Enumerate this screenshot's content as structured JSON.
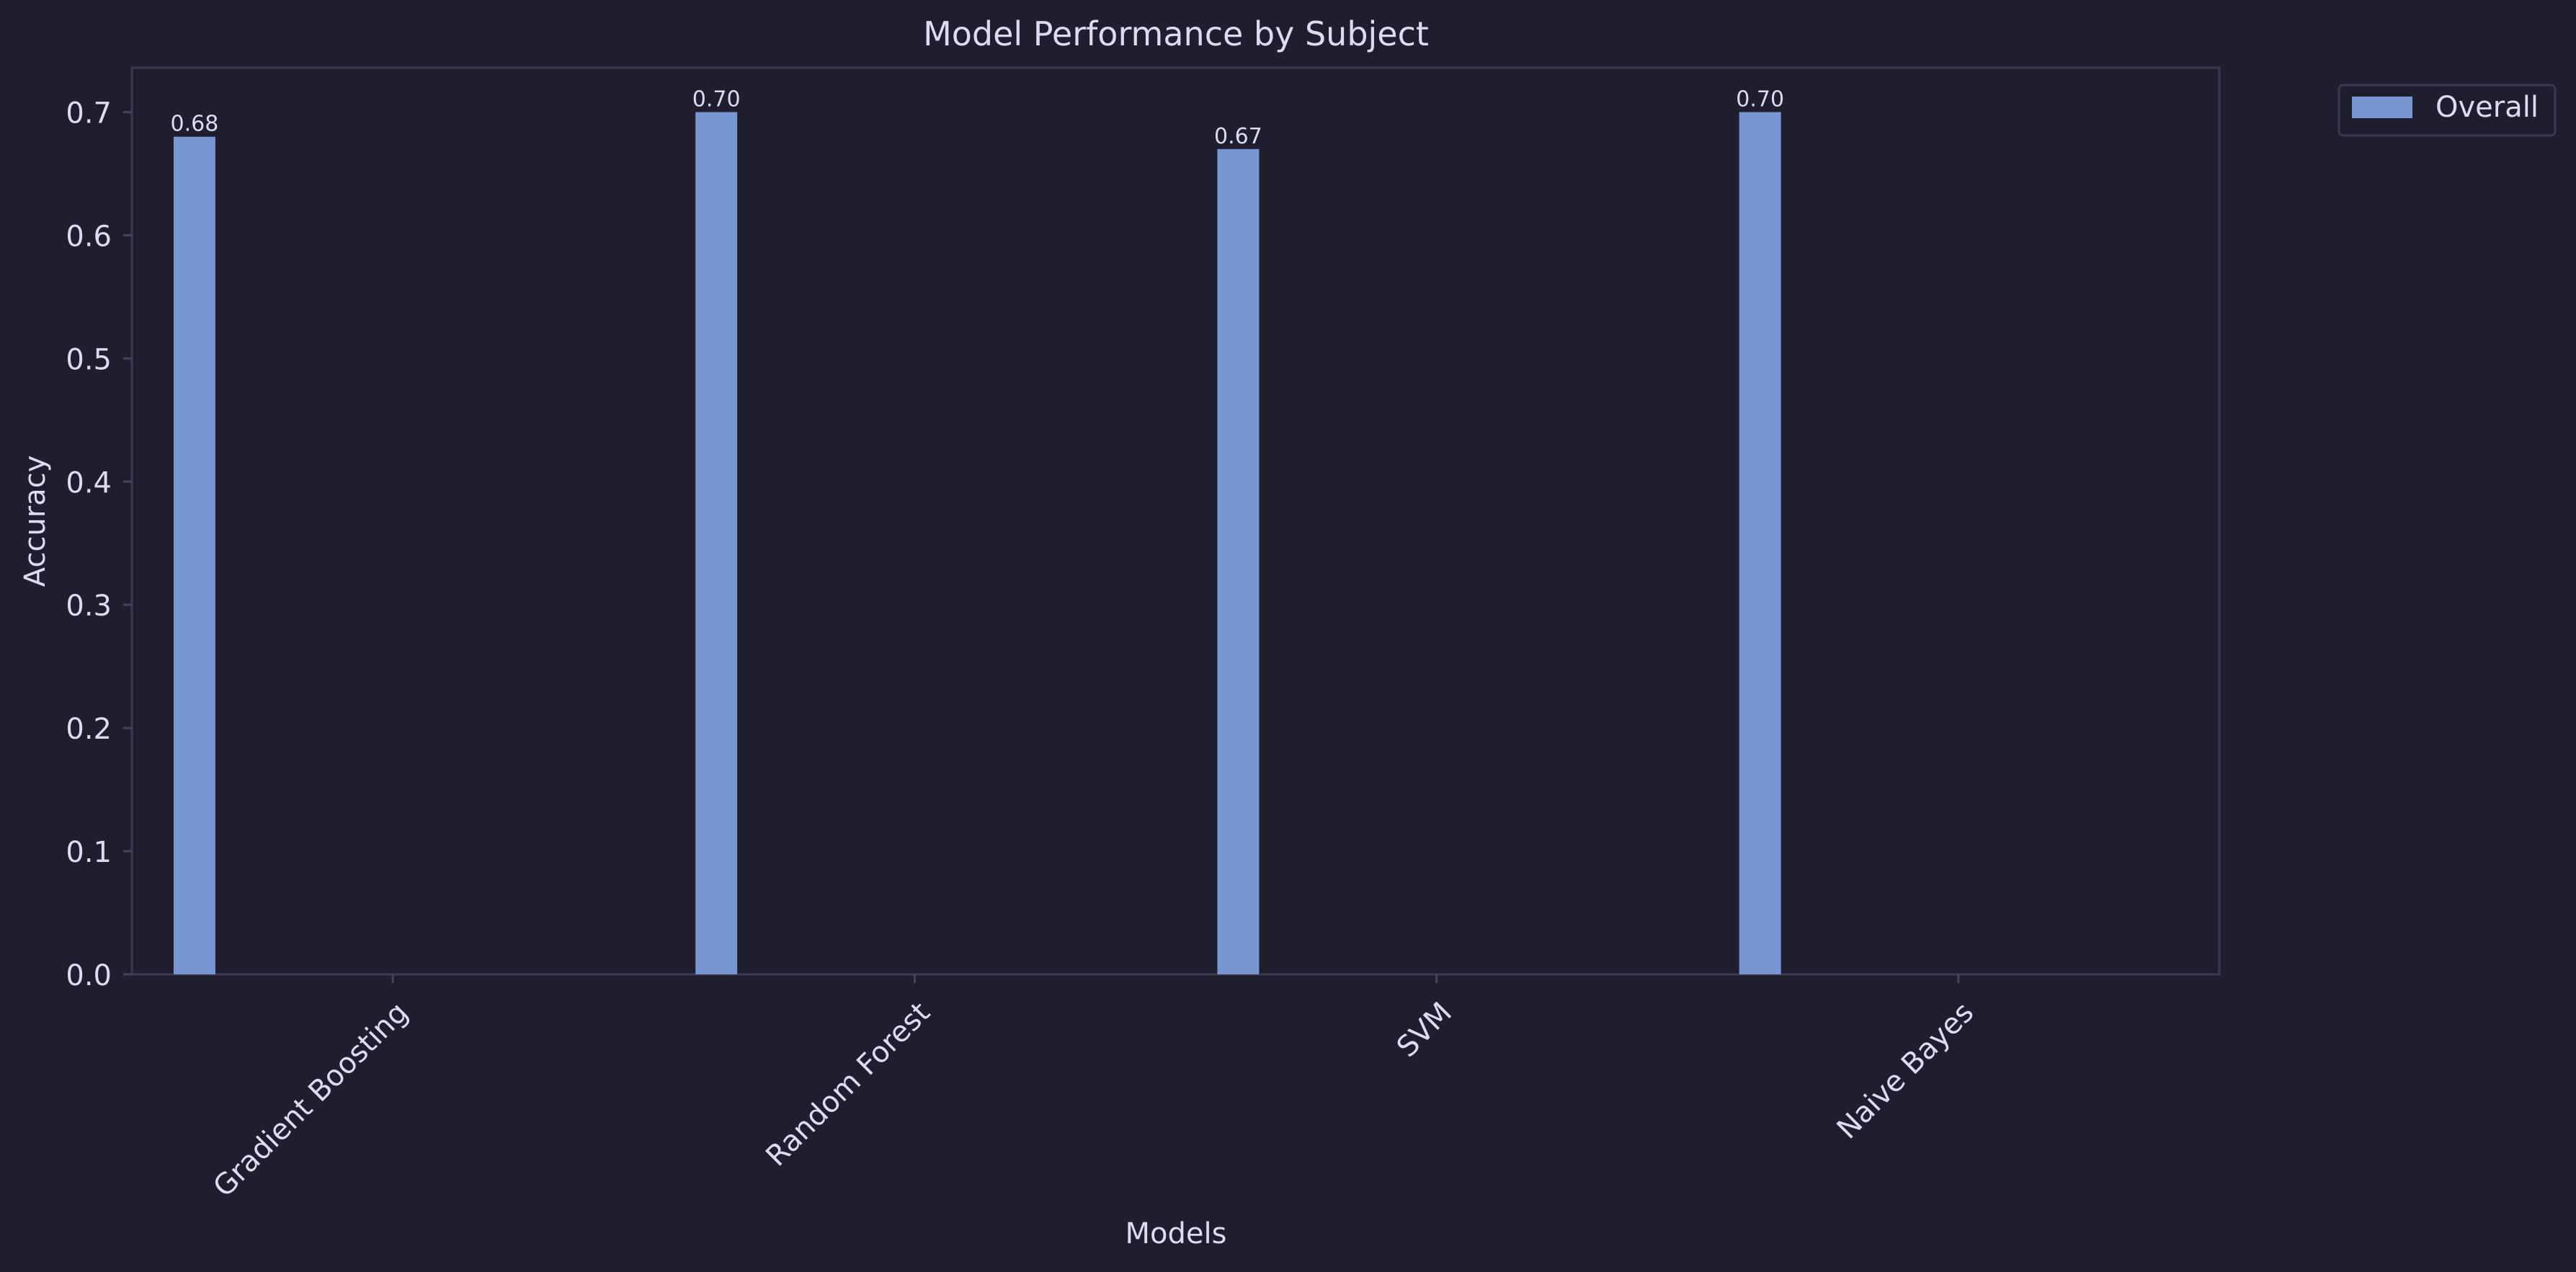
{
  "chart_data": {
    "type": "bar",
    "title": "Model Performance by Subject",
    "xlabel": "Models",
    "ylabel": "Accuracy",
    "categories": [
      "Gradient Boosting",
      "Random Forest",
      "SVM",
      "Naive Bayes"
    ],
    "series": [
      {
        "name": "Overall",
        "values": [
          0.68,
          0.7,
          0.67,
          0.7
        ],
        "labels": [
          "0.68",
          "0.70",
          "0.67",
          "0.70"
        ]
      }
    ],
    "ylim": [
      0,
      0.736
    ],
    "yticks": [
      "0.0",
      "0.1",
      "0.2",
      "0.3",
      "0.4",
      "0.5",
      "0.6",
      "0.7"
    ],
    "grid": false,
    "legend_position": "top-right, outside plot area"
  },
  "colors": {
    "background": "#1f1e2e",
    "bar": "#7896d2",
    "text": "#dcdcf0",
    "axis": "#44445a"
  }
}
